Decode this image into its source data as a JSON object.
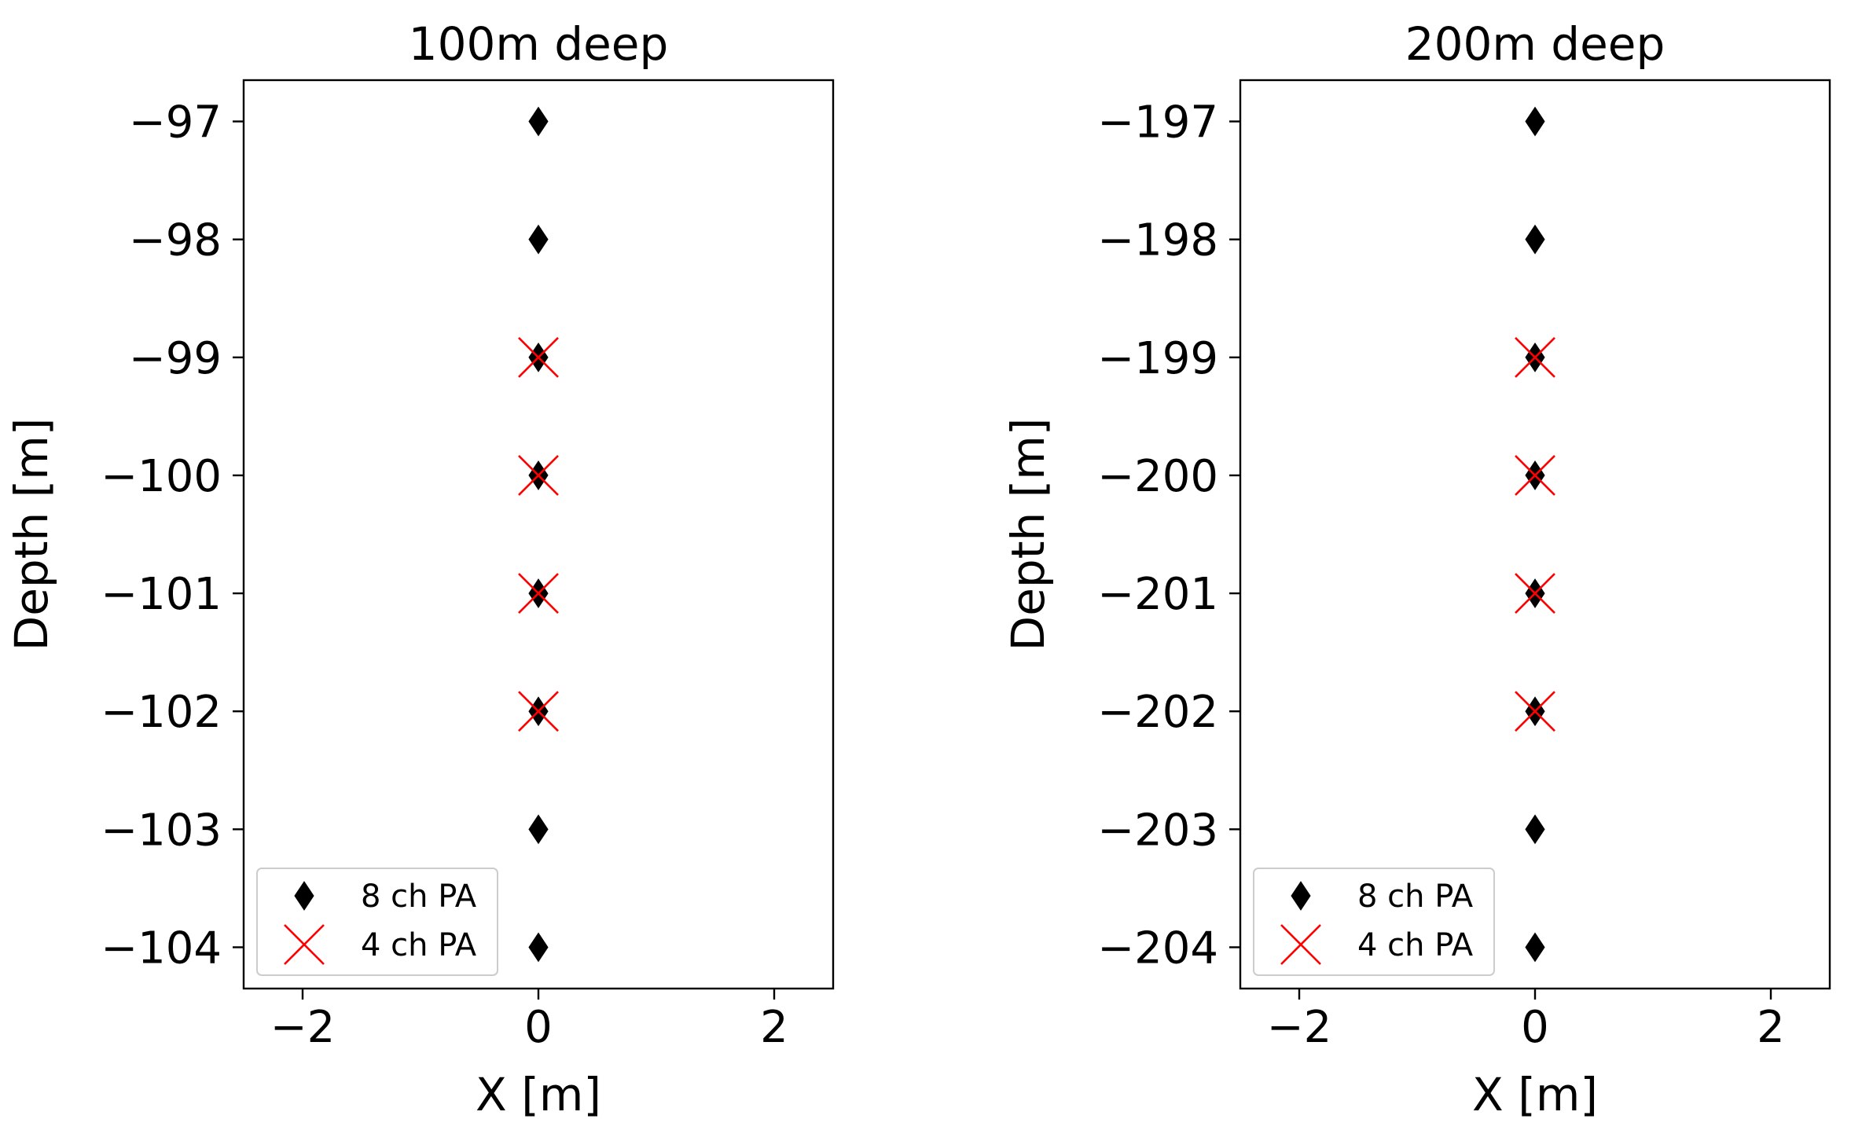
{
  "chart_data": [
    {
      "type": "scatter",
      "title": "100m deep",
      "xlabel": "X [m]",
      "ylabel": "Depth [m]",
      "xlim": [
        -2.5,
        2.5
      ],
      "ylim": [
        -104.35,
        -96.65
      ],
      "xticks": [
        -2,
        0,
        2
      ],
      "yticks": [
        -97,
        -98,
        -99,
        -100,
        -101,
        -102,
        -103,
        -104
      ],
      "legend_position": "lower-left",
      "series": [
        {
          "name": "8 ch PA",
          "marker": "thin-diamond",
          "color": "#000000",
          "x": [
            0,
            0,
            0,
            0,
            0,
            0,
            0,
            0
          ],
          "y": [
            -97,
            -98,
            -99,
            -100,
            -101,
            -102,
            -103,
            -104
          ]
        },
        {
          "name": "4 ch PA",
          "marker": "x",
          "color": "#ff0000",
          "x": [
            0,
            0,
            0,
            0
          ],
          "y": [
            -99,
            -100,
            -101,
            -102
          ]
        }
      ]
    },
    {
      "type": "scatter",
      "title": "200m deep",
      "xlabel": "X [m]",
      "ylabel": "Depth [m]",
      "xlim": [
        -2.5,
        2.5
      ],
      "ylim": [
        -204.35,
        -196.65
      ],
      "xticks": [
        -2,
        0,
        2
      ],
      "yticks": [
        -197,
        -198,
        -199,
        -200,
        -201,
        -202,
        -203,
        -204
      ],
      "legend_position": "lower-left",
      "series": [
        {
          "name": "8 ch PA",
          "marker": "thin-diamond",
          "color": "#000000",
          "x": [
            0,
            0,
            0,
            0,
            0,
            0,
            0,
            0
          ],
          "y": [
            -197,
            -198,
            -199,
            -200,
            -201,
            -202,
            -203,
            -204
          ]
        },
        {
          "name": "4 ch PA",
          "marker": "x",
          "color": "#ff0000",
          "x": [
            0,
            0,
            0,
            0
          ],
          "y": [
            -199,
            -200,
            -201,
            -202
          ]
        }
      ]
    }
  ]
}
